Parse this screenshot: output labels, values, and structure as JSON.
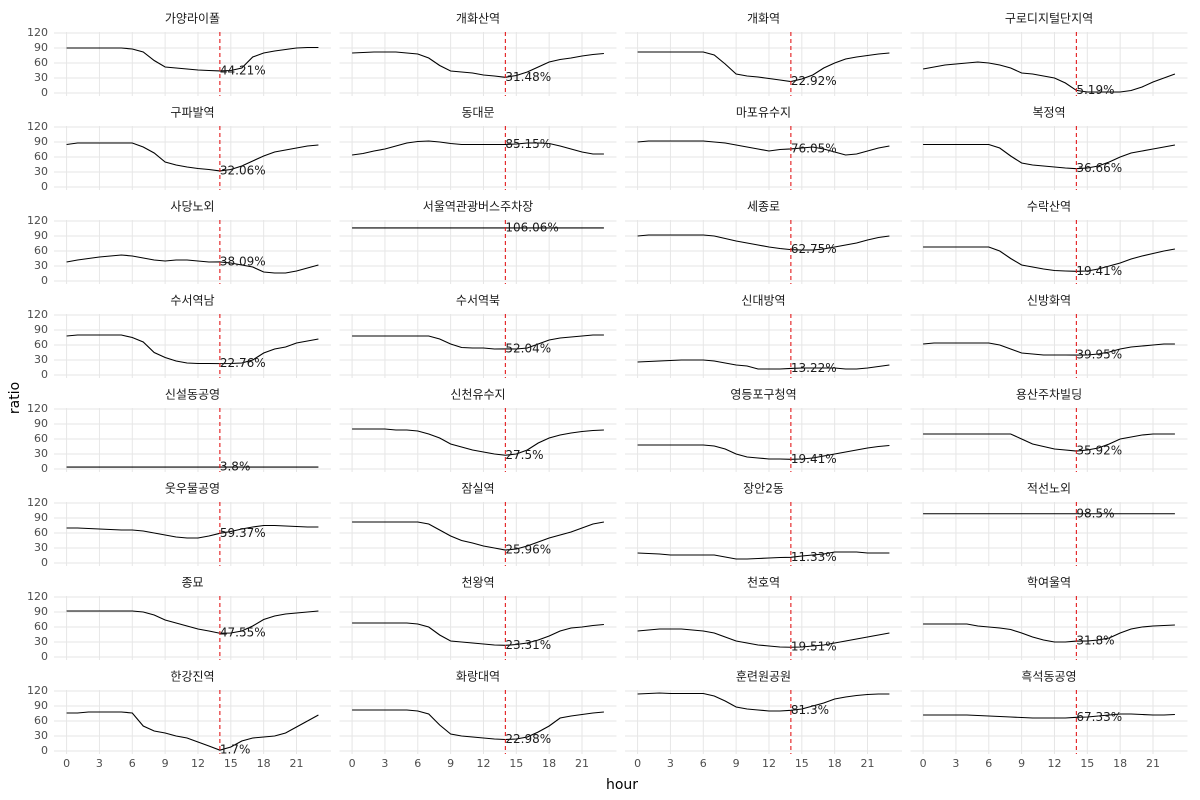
{
  "x_label": "hour",
  "y_label": "ratio",
  "x": [
    0,
    1,
    2,
    3,
    4,
    5,
    6,
    7,
    8,
    9,
    10,
    11,
    12,
    13,
    14,
    15,
    16,
    17,
    18,
    19,
    20,
    21,
    22,
    23
  ],
  "xlim": [
    -1.15,
    24.15
  ],
  "xticks": [
    0,
    3,
    6,
    9,
    12,
    15,
    18,
    21
  ],
  "ylim": [
    -6,
    122
  ],
  "yticks": [
    0,
    30,
    60,
    90,
    120
  ],
  "grid": true,
  "line_color": "#000000",
  "vline": {
    "x": 14,
    "color": "#e31a1c"
  },
  "chart_data": [
    {
      "type": "line",
      "title": "가양라이폴",
      "values": [
        90,
        90,
        90,
        90,
        90,
        90,
        88,
        82,
        65,
        52,
        50,
        48,
        46,
        45,
        44.21,
        45,
        50,
        72,
        80,
        84,
        87,
        90,
        91,
        91
      ],
      "annotation": {
        "value": 44.21,
        "label": "44.21%"
      }
    },
    {
      "type": "line",
      "title": "개화산역",
      "values": [
        80,
        81,
        82,
        82,
        82,
        80,
        78,
        70,
        55,
        44,
        42,
        40,
        36,
        34,
        31.48,
        35,
        42,
        52,
        62,
        67,
        70,
        74,
        77,
        79
      ],
      "annotation": {
        "value": 31.48,
        "label": "31.48%"
      }
    },
    {
      "type": "line",
      "title": "개화역",
      "values": [
        82,
        82,
        82,
        82,
        82,
        82,
        82,
        76,
        58,
        38,
        34,
        32,
        29,
        26,
        22.92,
        28,
        36,
        50,
        60,
        68,
        72,
        75,
        78,
        80
      ],
      "annotation": {
        "value": 22.92,
        "label": "22.92%"
      }
    },
    {
      "type": "line",
      "title": "구로디지털단지역",
      "values": [
        48,
        52,
        56,
        58,
        60,
        62,
        60,
        56,
        50,
        40,
        38,
        34,
        30,
        20,
        5.19,
        2,
        2,
        2,
        2,
        5,
        12,
        22,
        30,
        38
      ],
      "annotation": {
        "value": 5.19,
        "label": "5.19%"
      }
    },
    {
      "type": "line",
      "title": "구파발역",
      "values": [
        85,
        88,
        88,
        88,
        88,
        88,
        88,
        80,
        68,
        50,
        44,
        40,
        37,
        35,
        32.06,
        35,
        42,
        52,
        62,
        70,
        74,
        78,
        82,
        84
      ],
      "annotation": {
        "value": 32.06,
        "label": "32.06%"
      }
    },
    {
      "type": "line",
      "title": "동대문",
      "values": [
        64,
        67,
        72,
        76,
        82,
        88,
        91,
        92,
        90,
        87,
        85,
        85,
        85,
        85,
        85.15,
        86,
        88,
        88,
        87,
        82,
        76,
        70,
        66,
        66
      ],
      "annotation": {
        "value": 85.15,
        "label": "85.15%"
      }
    },
    {
      "type": "line",
      "title": "마포유수지",
      "values": [
        90,
        92,
        92,
        92,
        92,
        92,
        92,
        90,
        88,
        84,
        80,
        76,
        72,
        75,
        76.05,
        78,
        80,
        76,
        70,
        64,
        66,
        72,
        78,
        82
      ],
      "annotation": {
        "value": 76.05,
        "label": "76.05%"
      }
    },
    {
      "type": "line",
      "title": "복정역",
      "values": [
        85,
        85,
        85,
        85,
        85,
        85,
        85,
        78,
        62,
        48,
        44,
        42,
        40,
        38,
        36.66,
        38,
        42,
        50,
        60,
        68,
        72,
        76,
        80,
        84
      ],
      "annotation": {
        "value": 36.66,
        "label": "36.66%"
      }
    },
    {
      "type": "line",
      "title": "사당노외",
      "values": [
        38,
        42,
        45,
        48,
        50,
        52,
        50,
        46,
        42,
        40,
        42,
        42,
        40,
        38,
        38.09,
        36,
        32,
        28,
        18,
        16,
        16,
        20,
        26,
        32
      ],
      "annotation": {
        "value": 38.09,
        "label": "38.09%"
      }
    },
    {
      "type": "line",
      "title": "서울역관광버스주차장",
      "values": [
        106.06,
        106.06,
        106.06,
        106.06,
        106.06,
        106.06,
        106.06,
        106.06,
        106.06,
        106.06,
        106.06,
        106.06,
        106.06,
        106.06,
        106.06,
        106.06,
        106.06,
        106.06,
        106.06,
        106.06,
        106.06,
        106.06,
        106.06,
        106.06
      ],
      "annotation": {
        "value": 106.06,
        "label": "106.06%"
      }
    },
    {
      "type": "line",
      "title": "세종로",
      "values": [
        90,
        92,
        92,
        92,
        92,
        92,
        92,
        90,
        85,
        80,
        76,
        72,
        68,
        65,
        62.75,
        62,
        62,
        64,
        68,
        72,
        76,
        82,
        87,
        90
      ],
      "annotation": {
        "value": 62.75,
        "label": "62.75%"
      }
    },
    {
      "type": "line",
      "title": "수락산역",
      "values": [
        68,
        68,
        68,
        68,
        68,
        68,
        68,
        60,
        45,
        32,
        28,
        24,
        21,
        20,
        19.41,
        20,
        24,
        30,
        36,
        44,
        50,
        55,
        60,
        64
      ],
      "annotation": {
        "value": 19.41,
        "label": "19.41%"
      }
    },
    {
      "type": "line",
      "title": "수서역남",
      "values": [
        78,
        80,
        80,
        80,
        80,
        80,
        75,
        66,
        45,
        35,
        28,
        24,
        23,
        23,
        22.76,
        23,
        24,
        30,
        44,
        52,
        56,
        64,
        68,
        72
      ],
      "annotation": {
        "value": 22.76,
        "label": "22.76%"
      }
    },
    {
      "type": "line",
      "title": "수서역북",
      "values": [
        78,
        78,
        78,
        78,
        78,
        78,
        78,
        78,
        72,
        62,
        55,
        54,
        54,
        52,
        52.04,
        52,
        54,
        62,
        70,
        74,
        76,
        78,
        80,
        80
      ],
      "annotation": {
        "value": 52.04,
        "label": "52.04%"
      }
    },
    {
      "type": "line",
      "title": "신대방역",
      "values": [
        26,
        27,
        28,
        29,
        30,
        30,
        30,
        28,
        24,
        20,
        18,
        12,
        12,
        12,
        13.22,
        14,
        14,
        14,
        14,
        12,
        12,
        14,
        17,
        20
      ],
      "annotation": {
        "value": 13.22,
        "label": "13.22%"
      }
    },
    {
      "type": "line",
      "title": "신방화역",
      "values": [
        62,
        64,
        64,
        64,
        64,
        64,
        64,
        60,
        52,
        44,
        42,
        40,
        40,
        40,
        39.95,
        40,
        42,
        46,
        52,
        56,
        58,
        60,
        62,
        62
      ],
      "annotation": {
        "value": 39.95,
        "label": "39.95%"
      }
    },
    {
      "type": "line",
      "title": "신설동공영",
      "values": [
        3.8,
        3.8,
        3.8,
        3.8,
        3.8,
        3.8,
        3.8,
        3.8,
        3.8,
        3.8,
        3.8,
        3.8,
        3.8,
        3.8,
        3.8,
        3.8,
        3.8,
        3.8,
        3.8,
        3.8,
        3.8,
        3.8,
        3.8,
        3.8
      ],
      "annotation": {
        "value": 3.8,
        "label": "3.8%"
      }
    },
    {
      "type": "line",
      "title": "신천유수지",
      "values": [
        80,
        80,
        80,
        80,
        78,
        78,
        76,
        70,
        62,
        50,
        44,
        38,
        34,
        30,
        27.5,
        30,
        38,
        52,
        62,
        68,
        72,
        75,
        77,
        78
      ],
      "annotation": {
        "value": 27.5,
        "label": "27.5%"
      }
    },
    {
      "type": "line",
      "title": "영등포구청역",
      "values": [
        48,
        48,
        48,
        48,
        48,
        48,
        48,
        46,
        40,
        30,
        24,
        22,
        20,
        20,
        19.41,
        20,
        22,
        26,
        30,
        34,
        38,
        42,
        45,
        47
      ],
      "annotation": {
        "value": 19.41,
        "label": "19.41%"
      }
    },
    {
      "type": "line",
      "title": "용산주차빌딩",
      "values": [
        70,
        70,
        70,
        70,
        70,
        70,
        70,
        70,
        70,
        60,
        50,
        45,
        40,
        38,
        35.92,
        38,
        42,
        50,
        60,
        64,
        68,
        70,
        70,
        70
      ],
      "annotation": {
        "value": 35.92,
        "label": "35.92%"
      }
    },
    {
      "type": "line",
      "title": "웃우물공영",
      "values": [
        70,
        70,
        69,
        68,
        67,
        66,
        66,
        64,
        60,
        56,
        52,
        50,
        50,
        54,
        59.37,
        63,
        68,
        72,
        75,
        75,
        74,
        73,
        72,
        72
      ],
      "annotation": {
        "value": 59.37,
        "label": "59.37%"
      }
    },
    {
      "type": "line",
      "title": "잠실역",
      "values": [
        82,
        82,
        82,
        82,
        82,
        82,
        82,
        78,
        66,
        54,
        45,
        40,
        34,
        30,
        25.96,
        28,
        34,
        42,
        50,
        56,
        62,
        70,
        78,
        82
      ],
      "annotation": {
        "value": 25.96,
        "label": "25.96%"
      }
    },
    {
      "type": "line",
      "title": "장안2동",
      "values": [
        20,
        19,
        18,
        16,
        16,
        16,
        16,
        16,
        12,
        8,
        8,
        9,
        10,
        11,
        11.33,
        14,
        16,
        18,
        22,
        22,
        22,
        20,
        20,
        20
      ],
      "annotation": {
        "value": 11.33,
        "label": "11.33%"
      }
    },
    {
      "type": "line",
      "title": "적선노외",
      "values": [
        98.5,
        98.5,
        98.5,
        98.5,
        98.5,
        98.5,
        98.5,
        98.5,
        98.5,
        98.5,
        98.5,
        98.5,
        98.5,
        98.5,
        98.5,
        98.5,
        98.5,
        98.5,
        98.5,
        98.5,
        98.5,
        98.5,
        98.5,
        98.5
      ],
      "annotation": {
        "value": 98.5,
        "label": "98.5%"
      }
    },
    {
      "type": "line",
      "title": "종묘",
      "values": [
        92,
        92,
        92,
        92,
        92,
        92,
        92,
        90,
        84,
        74,
        68,
        62,
        56,
        52,
        47.55,
        48,
        52,
        62,
        75,
        82,
        86,
        88,
        90,
        92
      ],
      "annotation": {
        "value": 47.55,
        "label": "47.55%"
      }
    },
    {
      "type": "line",
      "title": "천왕역",
      "values": [
        68,
        68,
        68,
        68,
        68,
        68,
        66,
        60,
        44,
        32,
        30,
        28,
        26,
        24,
        23.31,
        25,
        28,
        34,
        42,
        52,
        58,
        60,
        63,
        65
      ],
      "annotation": {
        "value": 23.31,
        "label": "23.31%"
      }
    },
    {
      "type": "line",
      "title": "천호역",
      "values": [
        52,
        54,
        56,
        56,
        56,
        54,
        52,
        48,
        40,
        32,
        28,
        24,
        22,
        20,
        19.51,
        20,
        22,
        24,
        28,
        32,
        36,
        40,
        44,
        48
      ],
      "annotation": {
        "value": 19.51,
        "label": "19.51%"
      }
    },
    {
      "type": "line",
      "title": "학여울역",
      "values": [
        66,
        66,
        66,
        66,
        66,
        62,
        60,
        58,
        55,
        48,
        40,
        34,
        30,
        30,
        31.8,
        32,
        34,
        38,
        48,
        56,
        60,
        62,
        63,
        64
      ],
      "annotation": {
        "value": 31.8,
        "label": "31.8%"
      }
    },
    {
      "type": "line",
      "title": "한강진역",
      "values": [
        76,
        76,
        78,
        78,
        78,
        78,
        76,
        50,
        40,
        36,
        30,
        26,
        18,
        10,
        1.7,
        8,
        20,
        26,
        28,
        30,
        36,
        48,
        60,
        72
      ],
      "annotation": {
        "value": 1.7,
        "label": "1.7%"
      }
    },
    {
      "type": "line",
      "title": "화랑대역",
      "values": [
        82,
        82,
        82,
        82,
        82,
        82,
        80,
        74,
        52,
        34,
        30,
        28,
        26,
        24,
        22.98,
        24,
        28,
        38,
        50,
        66,
        70,
        73,
        76,
        78
      ],
      "annotation": {
        "value": 22.98,
        "label": "22.98%"
      }
    },
    {
      "type": "line",
      "title": "훈련원공원",
      "values": [
        114,
        115,
        116,
        115,
        115,
        115,
        115,
        110,
        100,
        88,
        84,
        82,
        80,
        80,
        81.3,
        84,
        90,
        96,
        104,
        108,
        111,
        113,
        114,
        114
      ],
      "annotation": {
        "value": 81.3,
        "label": "81.3%"
      }
    },
    {
      "type": "line",
      "title": "흑석동공영",
      "values": [
        72,
        72,
        72,
        72,
        72,
        71,
        70,
        69,
        68,
        67,
        66,
        66,
        66,
        66,
        67.33,
        68,
        70,
        72,
        74,
        74,
        73,
        72,
        72,
        73
      ],
      "annotation": {
        "value": 67.33,
        "label": "67.33%"
      }
    }
  ]
}
